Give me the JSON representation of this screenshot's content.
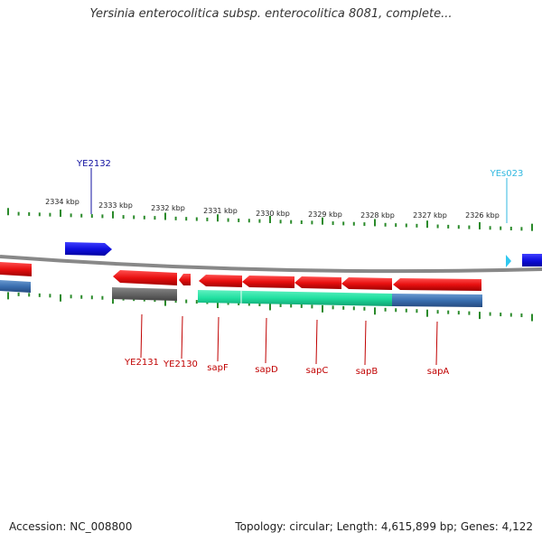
{
  "title": "Yersinia enterocolitica subsp. enterocolitica 8081, complete...",
  "footer": {
    "accession": "Accession: NC_008800",
    "summary": "Topology: circular; Length: 4,615,899 bp; Genes: 4,122"
  },
  "ruler_labels": [
    "2334 kbp",
    "2333 kbp",
    "2332 kbp",
    "2331 kbp",
    "2330 kbp",
    "2329 kbp",
    "2328 kbp",
    "2327 kbp",
    "2326 kbp"
  ],
  "top_labels": [
    {
      "text": "YE2132",
      "color": "#1010a0"
    },
    {
      "text": "YEs023",
      "color": "#30b8e0"
    }
  ],
  "bottom_labels": [
    "YE2131",
    "YE2130",
    "sapF",
    "sapD",
    "sapC",
    "sapB",
    "sapA"
  ],
  "colors": {
    "forward_gene": "#1010e0",
    "reverse_gene": "#e01010",
    "pseudo_gene": "#666666",
    "rna": "#30c8f0",
    "operon_green": "#20e0a0",
    "operon_blue": "#3a6fb0",
    "ruler_tick": "#2a8a2a",
    "label_red": "#c00000",
    "backbone": "#888888"
  }
}
